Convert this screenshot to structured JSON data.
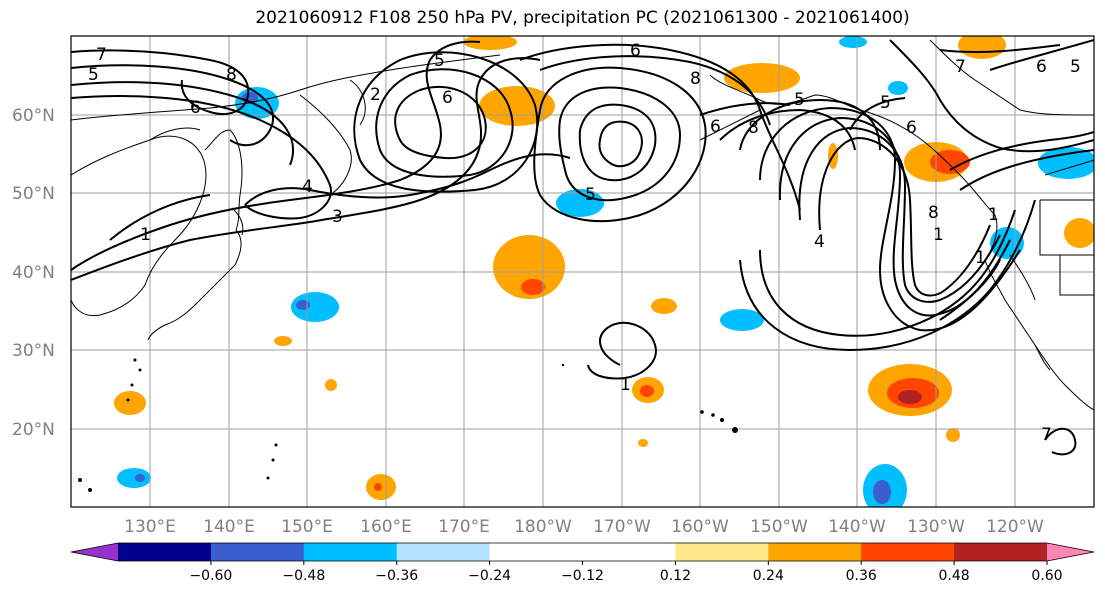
{
  "title": "2021060912 F108 250 hPa PV, precipitation PC (2021061300 - 2021061400)",
  "lat_labels": [
    "60°N",
    "50°N",
    "40°N",
    "30°N",
    "20°N"
  ],
  "lon_labels": [
    "130°E",
    "140°E",
    "150°E",
    "160°E",
    "170°E",
    "180°W",
    "170°W",
    "160°W",
    "150°W",
    "140°W",
    "130°W",
    "120°W"
  ],
  "colorbar": {
    "colors": [
      "#9932CC",
      "#00008B",
      "#3A5FCD",
      "#00BFFF",
      "#B2E2FF",
      "#FFFFFF",
      "#FFFFFF",
      "#FFE98A",
      "#FFA500",
      "#FF4500",
      "#B22222",
      "#FF85B2"
    ],
    "tick_labels": [
      "-0.60",
      "-0.48",
      "-0.36",
      "-0.24",
      "-0.12",
      "0.12",
      "0.24",
      "0.36",
      "0.48",
      "0.60"
    ]
  },
  "contour_labels": [
    "7",
    "5",
    "6",
    "8",
    "2",
    "4",
    "3",
    "1",
    "5",
    "6",
    "8",
    "6",
    "5",
    "6",
    "8",
    "5",
    "5",
    "6",
    "7",
    "5",
    "6",
    "4",
    "1",
    "8",
    "1",
    "1",
    "1",
    "7"
  ]
}
